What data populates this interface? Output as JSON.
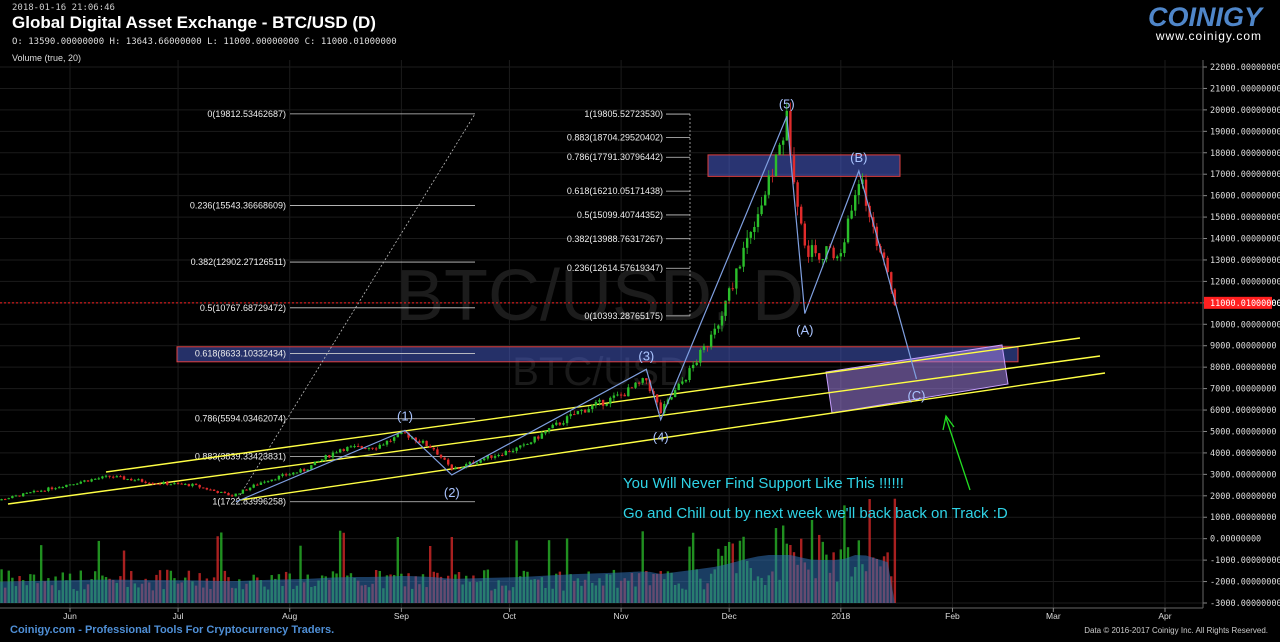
{
  "header": {
    "timestamp": "2018-01-16 21:06:46",
    "title": "Global Digital Asset Exchange - BTC/USD (D)",
    "ohlc": "O: 13590.00000000 H: 13643.66000000 L: 11000.00000000 C: 11000.01000000",
    "volume_label": "Volume (true, 20)"
  },
  "logo": {
    "word": "COINIGY",
    "url": "www.coinigy.com"
  },
  "watermark": {
    "line1": "BTC/USD, D",
    "line2": "BTC/USD"
  },
  "footer": {
    "left": "Coinigy.com - Professional Tools For Cryptocurrency Traders.",
    "right": "Data © 2016-2017 Coinigy Inc. All Rights Reserved."
  },
  "notes": {
    "line1": "You Will Never Find Support Like This !!!!!!",
    "line2": "Go and Chill out by next week we'll back back on Track :D"
  },
  "colors": {
    "bull": "#2bbf2b",
    "bear": "#e02b2b",
    "wave": "#7f9fe0",
    "channel": "#ffff44",
    "zone": "#4a5fd0",
    "price": "#ff2020",
    "note": "#2fd3e6"
  },
  "chart_data": {
    "type": "line",
    "title": "Global Digital Asset Exchange - BTC/USD (D)",
    "x_ticks": [
      "Jun",
      "Jul",
      "Aug",
      "Sep",
      "Oct",
      "Nov",
      "Dec",
      "2018",
      "Feb",
      "Mar",
      "Apr"
    ],
    "y_ticks": [
      "22000.00000000",
      "21000.00000000",
      "20000.00000000",
      "19000.00000000",
      "18000.00000000",
      "17000.00000000",
      "16000.00000000",
      "15000.00000000",
      "14000.00000000",
      "13000.00000000",
      "12000.00000000",
      "11000.00000000",
      "10000.00000000",
      "9000.00000000",
      "8000.00000000",
      "7000.00000000",
      "6000.00000000",
      "5000.00000000",
      "4000.00000000",
      "3000.00000000",
      "2000.00000000",
      "1000.00000000",
      "0.00000000",
      "-1000.00000000",
      "-2000.00000000",
      "-3000.00000000"
    ],
    "ylim": [
      -3000,
      22000
    ],
    "last_price_label": "11000.01000000",
    "last_price": 11000.01,
    "price_series": {
      "name": "BTC/USD",
      "x": [
        "2017-05-07",
        "2017-05-20",
        "2017-06-05",
        "2017-06-12",
        "2017-06-25",
        "2017-07-05",
        "2017-07-16",
        "2017-07-25",
        "2017-08-05",
        "2017-08-15",
        "2017-08-25",
        "2017-09-02",
        "2017-09-10",
        "2017-09-15",
        "2017-09-25",
        "2017-10-05",
        "2017-10-12",
        "2017-10-20",
        "2017-11-01",
        "2017-11-08",
        "2017-11-12",
        "2017-11-20",
        "2017-11-28",
        "2017-12-07",
        "2017-12-12",
        "2017-12-17",
        "2017-12-22",
        "2018-01-01",
        "2018-01-06",
        "2018-01-16"
      ],
      "close": [
        1600,
        2100,
        2700,
        2900,
        2600,
        2500,
        2000,
        2700,
        3200,
        4200,
        4300,
        4900,
        4200,
        3200,
        3800,
        4300,
        5100,
        5900,
        6700,
        7400,
        5900,
        7800,
        9900,
        14500,
        16500,
        19500,
        13500,
        13200,
        16900,
        11000
      ]
    },
    "volume_baseline": -3000,
    "elliott_waves": {
      "points": [
        {
          "label": "(1)",
          "x": "2017-09-02",
          "y": 5050
        },
        {
          "label": "(2)",
          "x": "2017-09-15",
          "y": 2975
        },
        {
          "label": "(3)",
          "x": "2017-11-08",
          "y": 7900
        },
        {
          "label": "(4)",
          "x": "2017-11-12",
          "y": 5550
        },
        {
          "label": "(5)",
          "x": "2017-12-17",
          "y": 19700
        },
        {
          "label": "(A)",
          "x": "2017-12-22",
          "y": 10500
        },
        {
          "label": "(B)",
          "x": "2018-01-06",
          "y": 17150
        },
        {
          "label": "(C)",
          "x": "2018-01-22",
          "y": 7450
        }
      ]
    },
    "fib_left": [
      {
        "label": "0(19812.53462687)",
        "value": 19812.53
      },
      {
        "label": "0.236(15543.36668609)",
        "value": 15543.37
      },
      {
        "label": "0.382(12902.27126511)",
        "value": 12902.27
      },
      {
        "label": "0.5(10767.68729472)",
        "value": 10767.69
      },
      {
        "label": "0.618(8633.10332434)",
        "value": 8633.1
      },
      {
        "label": "0.786(5594.03462074)",
        "value": 5594.03
      },
      {
        "label": "0.883(3839.33423831)",
        "value": 3839.33
      },
      {
        "label": "1(1722.83996258)",
        "value": 1722.84
      }
    ],
    "fib_right": [
      {
        "label": "1(19805.52723530)",
        "value": 19805.53
      },
      {
        "label": "0.883(18704.29520402)",
        "value": 18704.3
      },
      {
        "label": "0.786(17791.30796442)",
        "value": 17791.31
      },
      {
        "label": "0.618(16210.05171438)",
        "value": 16210.05
      },
      {
        "label": "0.5(15099.40744352)",
        "value": 15099.41
      },
      {
        "label": "0.382(13988.76317267)",
        "value": 13988.76
      },
      {
        "label": "0.236(12614.57619347)",
        "value": 12614.58
      },
      {
        "label": "0(10393.28765175)",
        "value": 10393.29
      }
    ],
    "resistance_zone": [
      16900,
      17900
    ],
    "support_zone": [
      8250,
      8950
    ],
    "grid": true,
    "legend": "none"
  }
}
